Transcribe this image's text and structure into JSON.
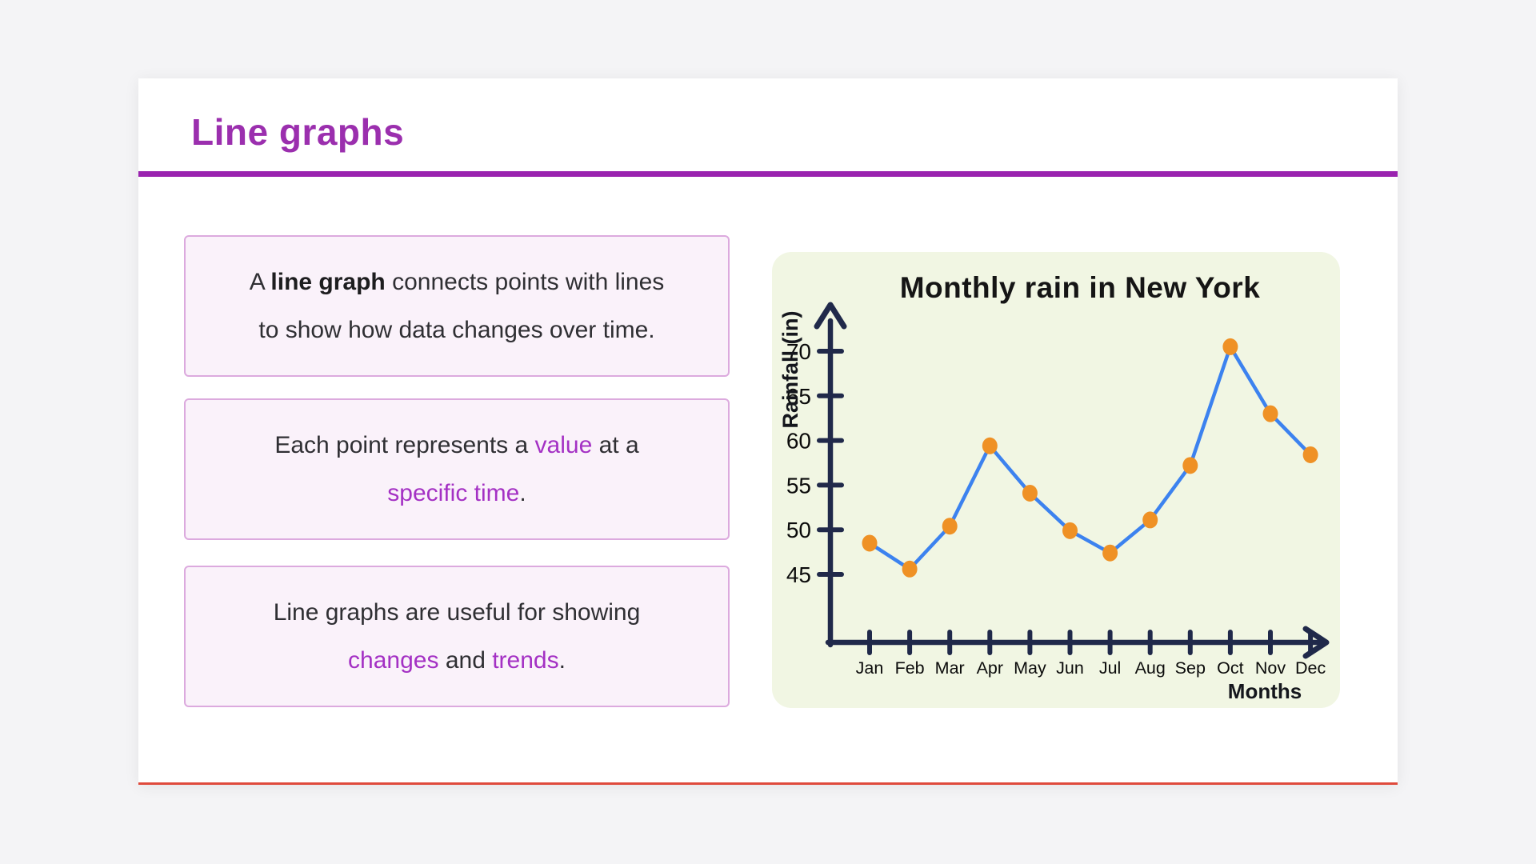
{
  "page": {
    "title": "Line graphs"
  },
  "boxes": {
    "box1": {
      "seg_a": "A ",
      "seg_b": "line graph",
      "seg_c": " connects points with lines",
      "line2": "to show how data changes over time."
    },
    "box2": {
      "seg_a": "Each point represents a ",
      "seg_b": "value",
      "seg_c": " at a",
      "seg_d": "specific time",
      "seg_e": "."
    },
    "box3": {
      "line1": "Line graphs are useful for showing",
      "seg_a": "changes",
      "seg_b": " and ",
      "seg_c": "trends",
      "seg_d": "."
    }
  },
  "colors": {
    "heading_purple": "#9b2fae",
    "rule_purple": "#9a23af",
    "accent_purple": "#a431c4",
    "box_border": "#dcaade",
    "box_background": "#faf2fa",
    "card_bottom_border": "#df4a3c",
    "chart_panel_background": "#f1f6e3"
  },
  "chart_data": {
    "type": "line",
    "title": "Monthly rain in New York",
    "xlabel": "Months",
    "ylabel": "Rainfall (in)",
    "categories": [
      "Jan",
      "Feb",
      "Mar",
      "Apr",
      "May",
      "Jun",
      "Jul",
      "Aug",
      "Sep",
      "Oct",
      "Nov",
      "Dec"
    ],
    "values": [
      48.5,
      45.6,
      50.4,
      59.4,
      54.1,
      49.9,
      47.4,
      51.1,
      57.2,
      70.5,
      63,
      58.4
    ],
    "yticks": [
      45,
      50,
      55,
      60,
      65,
      70
    ],
    "ylim": [
      40,
      75
    ],
    "grid": false,
    "legend": false,
    "line_color": "#3c82ef",
    "point_color": "#ef9125",
    "axis_color": "#20294a",
    "tick_label_color": "#0b0b0b"
  }
}
